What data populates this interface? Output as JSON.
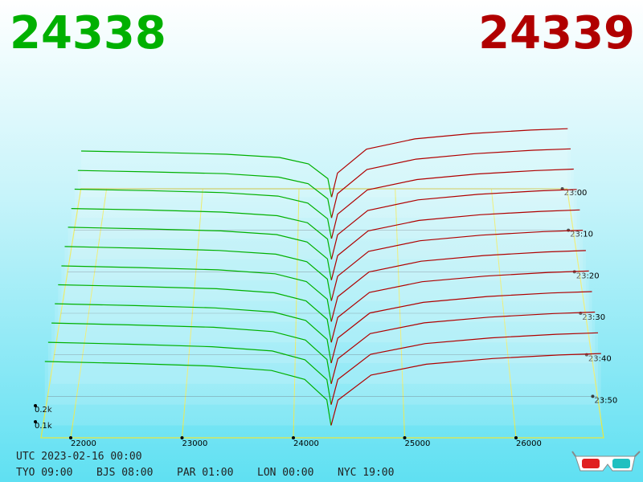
{
  "chart_data": {
    "type": "depth3d",
    "bid_price": 24338,
    "ask_price": 24339,
    "bid_color": "#00b000",
    "ask_color": "#b00000",
    "floor_color": "#e8e840",
    "xlim": [
      21733,
      26787
    ],
    "xticks": [
      22000,
      23000,
      24000,
      25000,
      26000
    ],
    "tlim": [
      1380,
      1440
    ],
    "tticks": [
      {
        "value": 1380,
        "label": "23:00"
      },
      {
        "value": 1390,
        "label": "23:10"
      },
      {
        "value": 1400,
        "label": "23:20"
      },
      {
        "value": 1410,
        "label": "23:30"
      },
      {
        "value": 1420,
        "label": "23:40"
      },
      {
        "value": 1430,
        "label": "23:50"
      }
    ],
    "vticks": [
      {
        "value": 100,
        "label": "0.1k"
      },
      {
        "value": 200,
        "label": "0.2k"
      }
    ],
    "bid_prices": [
      21750,
      22500,
      23250,
      23800,
      24100,
      24300,
      24338
    ],
    "ask_prices": [
      24339,
      24400,
      24700,
      25200,
      25800,
      26400,
      26780
    ],
    "snapshots": [
      {
        "time": 1382,
        "bids": [
          330,
          320,
          307,
          284,
          238,
          132,
          0
        ],
        "asks": [
          0,
          172,
          343,
          417,
          456,
          480,
          490
        ]
      },
      {
        "time": 1387,
        "bids": [
          335,
          325,
          312,
          288,
          241,
          134,
          0
        ],
        "asks": [
          0,
          171,
          342,
          415,
          454,
          478,
          488
        ]
      },
      {
        "time": 1392,
        "bids": [
          345,
          335,
          321,
          297,
          248,
          138,
          0
        ],
        "asks": [
          0,
          170,
          340,
          412,
          451,
          475,
          485
        ]
      },
      {
        "time": 1397,
        "bids": [
          350,
          340,
          326,
          301,
          252,
          140,
          0
        ],
        "asks": [
          0,
          169,
          337,
          410,
          448,
          472,
          482
        ]
      },
      {
        "time": 1402,
        "bids": [
          360,
          349,
          335,
          310,
          259,
          144,
          0
        ],
        "asks": [
          0,
          167,
          335,
          406,
          445,
          468,
          478
        ]
      },
      {
        "time": 1407,
        "bids": [
          365,
          354,
          339,
          314,
          263,
          146,
          0
        ],
        "asks": [
          0,
          166,
          333,
          404,
          442,
          466,
          475
        ]
      },
      {
        "time": 1412,
        "bids": [
          370,
          359,
          344,
          318,
          266,
          148,
          0
        ],
        "asks": [
          0,
          165,
          330,
          401,
          439,
          463,
          472
        ]
      },
      {
        "time": 1417,
        "bids": [
          378,
          367,
          352,
          325,
          272,
          151,
          0
        ],
        "asks": [
          0,
          164,
          328,
          398,
          435,
          459,
          468
        ]
      },
      {
        "time": 1422,
        "bids": [
          385,
          373,
          358,
          331,
          277,
          154,
          0
        ],
        "asks": [
          0,
          162,
          325,
          394,
          432,
          455,
          464
        ]
      },
      {
        "time": 1427,
        "bids": [
          390,
          378,
          363,
          335,
          281,
          156,
          0
        ],
        "asks": [
          0,
          161,
          322,
          391,
          428,
          451,
          460
        ]
      },
      {
        "time": 1432,
        "bids": [
          395,
          383,
          367,
          340,
          284,
          158,
          0
        ],
        "asks": [
          0,
          159,
          319,
          387,
          423,
          446,
          455
        ]
      },
      {
        "time": 1437,
        "bids": [
          400,
          388,
          372,
          344,
          288,
          160,
          0
        ],
        "asks": [
          0,
          158,
          315,
          383,
          419,
          441,
          450
        ]
      }
    ]
  },
  "footer": {
    "utc": "UTC 2023-02-16 00:00",
    "zones": [
      "TYO 09:00",
      "BJS 08:00",
      "PAR 01:00",
      "LON 00:00",
      "NYC 19:00"
    ]
  }
}
